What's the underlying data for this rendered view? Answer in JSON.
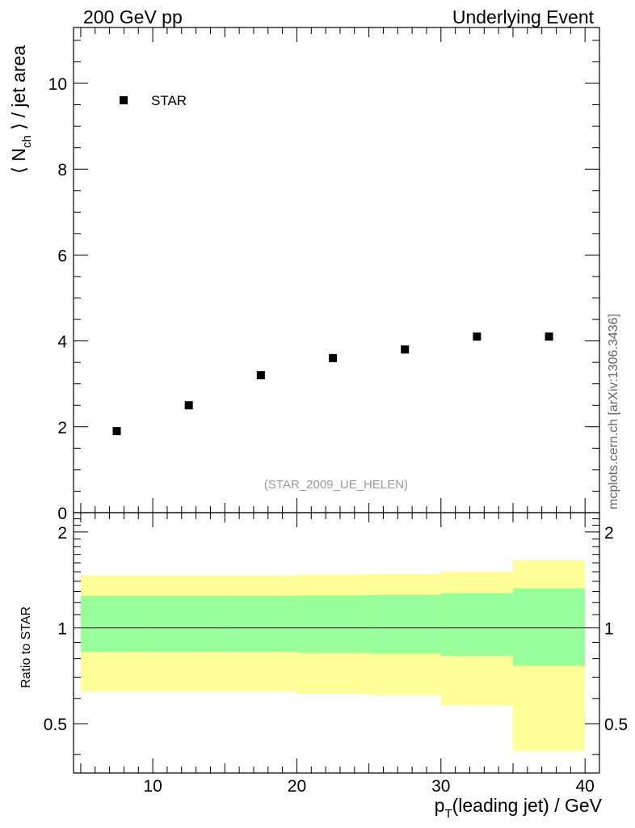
{
  "header": {
    "left_label": "200 GeV pp",
    "right_label": "Underlying Event"
  },
  "side_label": "mcplots.cern.ch [arXiv:1306.3436]",
  "analysis_label": "(STAR_2009_UE_HELEN)",
  "chart_data": [
    {
      "type": "scatter",
      "panel": "main",
      "ylabel_main": "⟨ N",
      "ylabel_sub": "ch",
      "ylabel_rest": " ⟩ / jet area",
      "xlim": [
        4.5,
        41
      ],
      "ylim": [
        0,
        11.3
      ],
      "yticks": [
        0,
        2,
        4,
        6,
        8,
        10
      ],
      "ytick_labels": [
        "0",
        "2",
        "4",
        "6",
        "8",
        "10"
      ],
      "legend": "top-left",
      "series": [
        {
          "name": "STAR",
          "x": [
            7.5,
            12.5,
            17.5,
            22.5,
            27.5,
            32.5,
            37.5
          ],
          "y": [
            1.9,
            2.5,
            3.2,
            3.6,
            3.8,
            4.1,
            4.1
          ]
        }
      ]
    },
    {
      "type": "area",
      "panel": "ratio",
      "ylabel": "Ratio to STAR",
      "xlabel_main": "p",
      "xlabel_sub": "T",
      "xlabel_rest": "(leading jet) / GeV",
      "xlim": [
        4.5,
        41
      ],
      "ylim": [
        0.35,
        2.3
      ],
      "log_y": true,
      "yticks": [
        0.5,
        1,
        2
      ],
      "ytick_labels": [
        "0.5",
        "1",
        "2"
      ],
      "xticks": [
        10,
        20,
        30,
        40
      ],
      "xtick_labels": [
        "10",
        "20",
        "30",
        "40"
      ],
      "reference_line": 1,
      "bin_edges": [
        5,
        10,
        15,
        20,
        25,
        30,
        35,
        40
      ],
      "inner_band": {
        "color": "#99ff99",
        "low": [
          0.84,
          0.84,
          0.84,
          0.835,
          0.83,
          0.815,
          0.76
        ],
        "high": [
          1.26,
          1.26,
          1.26,
          1.265,
          1.27,
          1.285,
          1.33
        ]
      },
      "outer_band": {
        "color": "#ffff99",
        "low": [
          0.63,
          0.63,
          0.63,
          0.62,
          0.615,
          0.57,
          0.41
        ],
        "high": [
          1.46,
          1.46,
          1.46,
          1.47,
          1.475,
          1.5,
          1.63
        ]
      }
    }
  ]
}
